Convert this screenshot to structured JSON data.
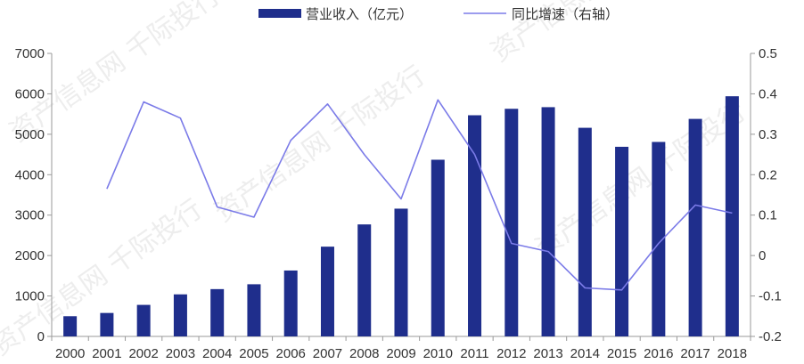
{
  "chart_data": {
    "type": "bar",
    "categories": [
      "2000",
      "2001",
      "2002",
      "2003",
      "2004",
      "2005",
      "2006",
      "2007",
      "2008",
      "2009",
      "2010",
      "2011",
      "2012",
      "2013",
      "2014",
      "2015",
      "2016",
      "2017",
      "2018"
    ],
    "series": [
      {
        "name": "营业收入（亿元）",
        "type": "bar",
        "axis": "left",
        "color": "#1f2e8c",
        "values": [
          500,
          580,
          780,
          1040,
          1170,
          1290,
          1630,
          2220,
          2770,
          3160,
          4370,
          5470,
          5630,
          5670,
          5160,
          4690,
          4810,
          5380,
          5940
        ]
      },
      {
        "name": "同比增速（右轴）",
        "type": "line",
        "axis": "right",
        "color": "#7b7be8",
        "values": [
          null,
          0.165,
          0.38,
          0.34,
          0.12,
          0.095,
          0.285,
          0.375,
          0.25,
          0.14,
          0.385,
          0.25,
          0.03,
          0.01,
          -0.08,
          -0.085,
          0.03,
          0.125,
          0.105
        ]
      }
    ],
    "y_left": {
      "min": 0,
      "max": 7000,
      "ticks": [
        "0",
        "1000",
        "2000",
        "3000",
        "4000",
        "5000",
        "6000",
        "7000"
      ]
    },
    "y_right": {
      "min": -0.2,
      "max": 0.5,
      "ticks": [
        "-0.2",
        "-0.1",
        "0",
        "0.1",
        "0.2",
        "0.3",
        "0.4",
        "0.5"
      ]
    },
    "legend": {
      "placement": "top"
    },
    "grid": false,
    "watermark_text": "资产信息网 千际投行"
  }
}
